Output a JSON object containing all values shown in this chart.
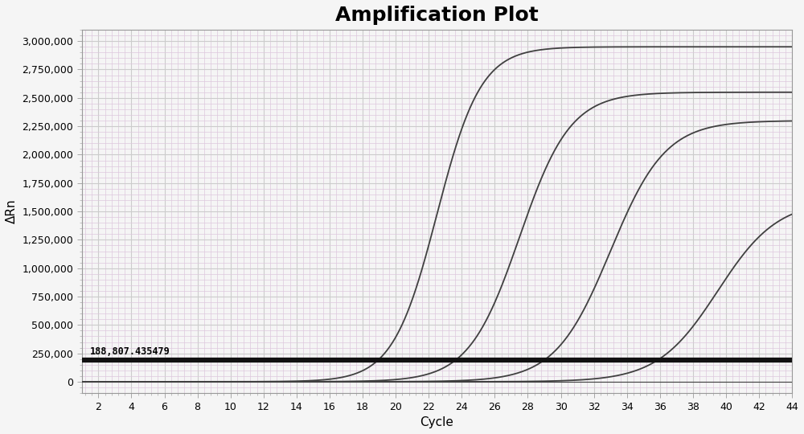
{
  "title": "Amplification Plot",
  "xlabel": "Cycle",
  "ylabel": "ΔRn",
  "xlim": [
    1,
    44
  ],
  "ylim": [
    -100000,
    3100000
  ],
  "xticks": [
    2,
    4,
    6,
    8,
    10,
    12,
    14,
    16,
    18,
    20,
    22,
    24,
    26,
    28,
    30,
    32,
    34,
    36,
    38,
    40,
    42,
    44
  ],
  "yticks": [
    0,
    250000,
    500000,
    750000,
    1000000,
    1250000,
    1500000,
    1750000,
    2000000,
    2250000,
    2500000,
    2750000,
    3000000
  ],
  "threshold_y": 188807.435479,
  "threshold_label": "188,807.435479",
  "background_color": "#f5f5f5",
  "grid_color_major": "#cccccc",
  "grid_color_minor": "#ddc8dd",
  "curve_color": "#404040",
  "threshold_color": "#111111",
  "curves": [
    {
      "L": 2950000,
      "k": 0.75,
      "x0": 22.5
    },
    {
      "L": 2550000,
      "k": 0.65,
      "x0": 27.5
    },
    {
      "L": 2300000,
      "k": 0.6,
      "x0": 33.0
    },
    {
      "L": 1600000,
      "k": 0.55,
      "x0": 39.5
    }
  ],
  "title_fontsize": 18,
  "axis_label_fontsize": 11,
  "tick_fontsize": 9,
  "minor_per_major": 5
}
